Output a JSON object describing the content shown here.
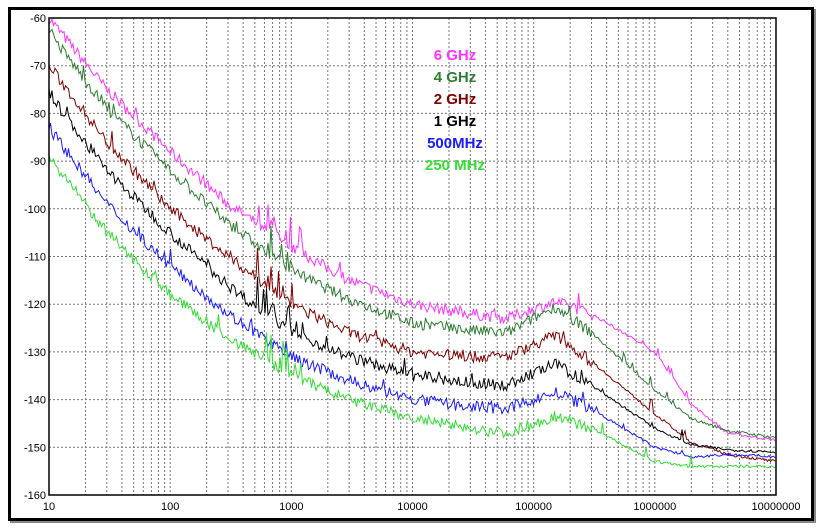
{
  "chart_data": {
    "type": "line",
    "title": "",
    "xlabel": "",
    "ylabel": "",
    "xscale": "log",
    "xlim": [
      10,
      10000000
    ],
    "ylim": [
      -160,
      -60
    ],
    "grid": true,
    "legend_placement": "top-center",
    "x_tick_labels": [
      "10",
      "100",
      "1000",
      "10000",
      "100000",
      "1000000",
      "10000000"
    ],
    "y_tick_labels": [
      "-60",
      "-70",
      "-80",
      "-90",
      "-100",
      "-110",
      "-120",
      "-130",
      "-140",
      "-150",
      "-160"
    ],
    "x": [
      10,
      30,
      100,
      300,
      1000,
      3000,
      10000,
      30000,
      60000,
      150000,
      300000,
      1000000,
      2000000,
      4000000,
      10000000
    ],
    "series": [
      {
        "name": "6 GHz",
        "color": "#ff33ff",
        "values": [
          -60,
          -75,
          -88,
          -99,
          -108,
          -115,
          -120,
          -122,
          -123,
          -119.5,
          -122,
          -130,
          -141,
          -147,
          -148.5
        ]
      },
      {
        "name": "4 GHz",
        "color": "#2e7d32",
        "values": [
          -63,
          -79,
          -92,
          -103,
          -113,
          -119,
          -124,
          -125.5,
          -126,
          -120.5,
          -126,
          -138,
          -144,
          -146.5,
          -148
        ]
      },
      {
        "name": "2 GHz",
        "color": "#800000",
        "values": [
          -70,
          -86,
          -100,
          -110,
          -120,
          -126,
          -130,
          -131,
          -131,
          -126.5,
          -132,
          -143,
          -149,
          -151.5,
          -153
        ]
      },
      {
        "name": "1 GHz",
        "color": "#000000",
        "values": [
          -76,
          -92,
          -105,
          -116,
          -126,
          -131,
          -135,
          -136.5,
          -137,
          -132.5,
          -137,
          -146,
          -149.5,
          -150.5,
          -151
        ]
      },
      {
        "name": "500MHz",
        "color": "#1a1aff",
        "values": [
          -83,
          -99,
          -112,
          -122,
          -131,
          -136,
          -140,
          -141.5,
          -142,
          -138.5,
          -142,
          -150,
          -152,
          -151.5,
          -152
        ]
      },
      {
        "name": "250 MHz",
        "color": "#33dd33",
        "values": [
          -89,
          -105,
          -118,
          -127,
          -135,
          -140,
          -144,
          -146,
          -147,
          -143.5,
          -146,
          -153,
          -154,
          -154,
          -154
        ]
      }
    ]
  }
}
